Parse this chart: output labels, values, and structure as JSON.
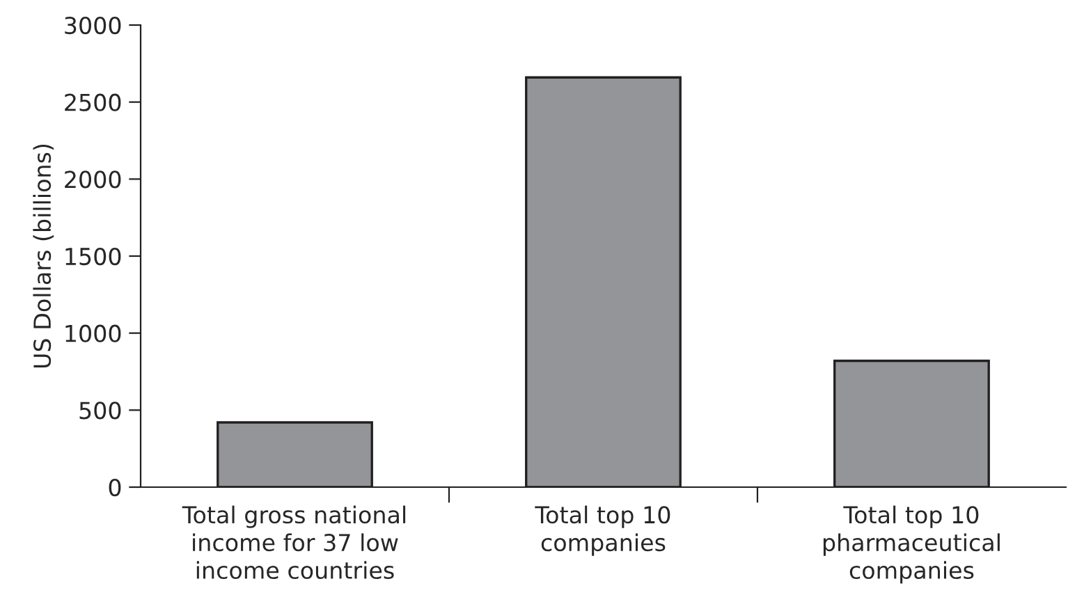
{
  "chart_data": {
    "type": "bar",
    "ylabel": "US Dollars (billions)",
    "categories": [
      "Total gross national income for 37 low income countries",
      "Total top 10 companies",
      "Total top 10 pharmaceutical companies"
    ],
    "values": [
      420,
      2660,
      820
    ],
    "color": "#939598",
    "ylim": [
      0,
      3000
    ],
    "yticks": [
      0,
      500,
      1000,
      1500,
      2000,
      2500,
      3000
    ],
    "grid": false
  }
}
